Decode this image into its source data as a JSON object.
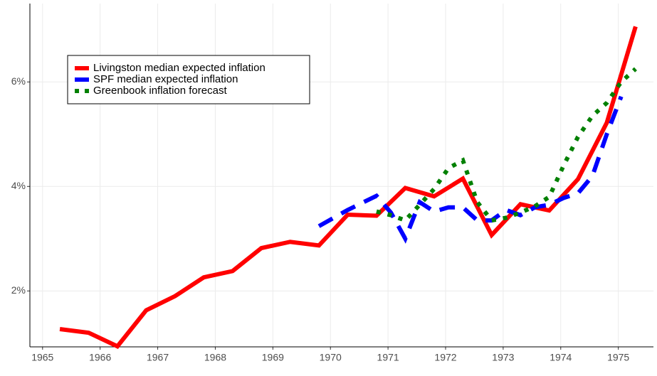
{
  "chart_data": {
    "type": "line",
    "xlim": [
      1964.78,
      1975.61
    ],
    "ylim": [
      0.93,
      7.5
    ],
    "xticks": [
      1965,
      1966,
      1967,
      1968,
      1969,
      1970,
      1971,
      1972,
      1973,
      1974,
      1975
    ],
    "yticks": [
      {
        "value": 2,
        "label": "2%"
      },
      {
        "value": 4,
        "label": "4%"
      },
      {
        "value": 6,
        "label": "6%"
      }
    ],
    "grid": true,
    "legend": "top-left",
    "series": [
      {
        "name": "Livingston median expected inflation",
        "color": "#ff0000",
        "style": "solid",
        "x": [
          1965.3,
          1965.8,
          1966.3,
          1966.8,
          1967.3,
          1967.8,
          1968.3,
          1968.8,
          1969.3,
          1969.8,
          1970.3,
          1970.8,
          1971.3,
          1971.8,
          1972.3,
          1972.8,
          1973.3,
          1973.8,
          1974.3,
          1974.8,
          1975.3
        ],
        "values": [
          1.27,
          1.2,
          0.94,
          1.63,
          1.9,
          2.26,
          2.38,
          2.82,
          2.94,
          2.87,
          3.46,
          3.44,
          3.97,
          3.81,
          4.15,
          3.07,
          3.66,
          3.54,
          4.14,
          5.22,
          7.06
        ]
      },
      {
        "name": "SPF median expected inflation",
        "color": "#0000ff",
        "style": "dashed",
        "x": [
          1969.8,
          1970.3,
          1970.8,
          1971.05,
          1971.3,
          1971.55,
          1971.8,
          1972.05,
          1972.3,
          1972.55,
          1972.8,
          1973.05,
          1973.3,
          1973.55,
          1973.8,
          1974.05,
          1974.3,
          1974.55,
          1974.8,
          1975.05
        ],
        "values": [
          3.24,
          3.55,
          3.82,
          3.5,
          3.0,
          3.7,
          3.52,
          3.6,
          3.6,
          3.35,
          3.35,
          3.55,
          3.45,
          3.6,
          3.65,
          3.78,
          3.87,
          4.2,
          5.0,
          5.72
        ]
      },
      {
        "name": "Greenbook inflation forecast",
        "color": "#008000",
        "style": "dotted",
        "x": [
          1970.8,
          1971.05,
          1971.3,
          1971.55,
          1971.8,
          1972.05,
          1972.3,
          1972.55,
          1972.8,
          1973.05,
          1973.3,
          1973.55,
          1973.8,
          1974.05,
          1974.3,
          1974.55,
          1974.8,
          1975.05,
          1975.3
        ],
        "values": [
          3.52,
          3.45,
          3.35,
          3.65,
          3.95,
          4.35,
          4.5,
          3.7,
          3.35,
          3.4,
          3.5,
          3.62,
          3.8,
          4.4,
          4.95,
          5.35,
          5.6,
          6.0,
          6.25
        ]
      }
    ]
  }
}
